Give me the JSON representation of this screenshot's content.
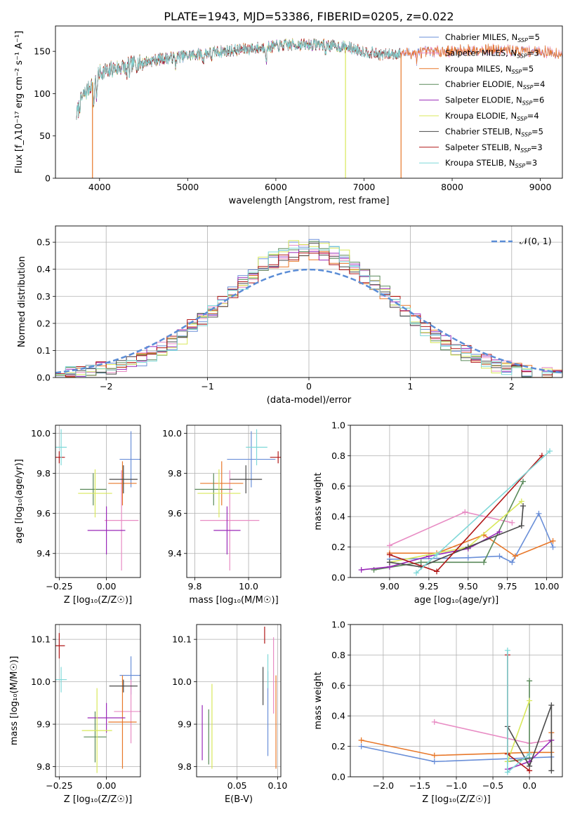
{
  "figure_title": "PLATE=1943, MJD=53386, FIBERID=0205, z=0.022",
  "colors": {
    "Chabrier MILES": "#6a8fd8",
    "Salpeter MILES": "#e88cc4",
    "Kroupa MILES": "#e8782a",
    "Chabrier ELODIE": "#5a8a5a",
    "Salpeter ELODIE": "#9a2ab8",
    "Kroupa ELODIE": "#d8e85a",
    "Chabrier STELIB": "#4a4a4a",
    "Salpeter STELIB": "#b01818",
    "Kroupa STELIB": "#7fd8d8",
    "gaussian": "#5b8dd6"
  },
  "chart_data": [
    {
      "id": "spectrum",
      "type": "line",
      "xlabel": "wavelength [Angstrom, rest frame]",
      "ylabel": "Flux [f_λ10⁻¹⁷ erg cm⁻² s⁻¹ A⁻¹]",
      "xlim": [
        3500,
        9250
      ],
      "ylim": [
        0,
        180
      ],
      "xticks": [
        4000,
        5000,
        6000,
        7000,
        8000,
        9000
      ],
      "yticks": [
        0,
        50,
        100,
        150
      ],
      "legend_loc": "upper right",
      "continuum": {
        "x": [
          3740,
          3800,
          3900,
          3950,
          4000,
          4100,
          4200,
          4300,
          4500,
          4700,
          5000,
          5300,
          5600,
          5900,
          6200,
          6500,
          6800,
          7000,
          7200,
          7500,
          7800,
          8000,
          8300,
          8600,
          9000,
          9200
        ],
        "y": [
          75,
          95,
          110,
          118,
          125,
          128,
          130,
          133,
          137,
          141,
          145,
          149,
          152,
          155,
          158,
          158,
          155,
          150,
          146,
          148,
          150,
          150,
          152,
          151,
          150,
          148
        ]
      },
      "series": [
        {
          "name": "Chabrier MILES",
          "n_ssp": "5",
          "x_range": [
            3740,
            9250
          ]
        },
        {
          "name": "Salpeter MILES",
          "n_ssp": "3",
          "x_range": [
            3740,
            9250
          ]
        },
        {
          "name": "Kroupa MILES",
          "n_ssp": "5",
          "x_range": [
            3740,
            9250
          ]
        },
        {
          "name": "Chabrier ELODIE",
          "n_ssp": "4",
          "x_range": [
            3740,
            6800
          ]
        },
        {
          "name": "Salpeter ELODIE",
          "n_ssp": "6",
          "x_range": [
            3740,
            6800
          ]
        },
        {
          "name": "Kroupa ELODIE",
          "n_ssp": "4",
          "x_range": [
            3740,
            6800
          ]
        },
        {
          "name": "Chabrier STELIB",
          "n_ssp": "5",
          "x_range": [
            3740,
            7420
          ]
        },
        {
          "name": "Salpeter STELIB",
          "n_ssp": "3",
          "x_range": [
            3740,
            7420
          ]
        },
        {
          "name": "Kroupa STELIB",
          "n_ssp": "3",
          "x_range": [
            3740,
            7420
          ]
        }
      ],
      "vertical_drops": [
        {
          "x": 3920,
          "series": "Kroupa MILES"
        },
        {
          "x": 6790,
          "series": "Kroupa ELODIE"
        },
        {
          "x": 7420,
          "series": "Kroupa MILES"
        }
      ]
    },
    {
      "id": "residuals",
      "type": "histogram",
      "xlabel": "(data-model)/error",
      "ylabel": "Normed distribution",
      "xlim": [
        -2.5,
        2.5
      ],
      "ylim": [
        0,
        0.56
      ],
      "xticks": [
        -2,
        -1,
        0,
        1,
        2
      ],
      "yticks": [
        0.0,
        0.1,
        0.2,
        0.3,
        0.4,
        0.5
      ],
      "bin_width": 0.1,
      "reference": {
        "label": "𝒩(0, 1)",
        "mean": 0,
        "sigma": 1
      },
      "legend_loc": "upper right"
    },
    {
      "id": "age_vs_Z",
      "type": "errorbar",
      "xlabel": "Z [log₁₀(Z/Z☉)]",
      "ylabel": "age  [log₁₀(age/yr)]",
      "xlim": [
        -0.27,
        0.18
      ],
      "ylim": [
        9.28,
        10.04
      ],
      "xticks": [
        -0.25,
        0.0
      ],
      "yticks": [
        9.4,
        9.6,
        9.8,
        10.0
      ],
      "points": [
        {
          "series": "Chabrier MILES",
          "x": 0.13,
          "xerr": 0.06,
          "y": 9.87,
          "yerr": 0.14
        },
        {
          "series": "Salpeter MILES",
          "x": 0.08,
          "xerr": 0.09,
          "y": 9.565,
          "yerr": 0.25
        },
        {
          "series": "Kroupa MILES",
          "x": 0.085,
          "xerr": 0.075,
          "y": 9.75,
          "yerr": 0.11
        },
        {
          "series": "Chabrier ELODIE",
          "x": -0.07,
          "xerr": 0.07,
          "y": 9.72,
          "yerr": 0.08
        },
        {
          "series": "Salpeter ELODIE",
          "x": 0.0,
          "xerr": 0.1,
          "y": 9.515,
          "yerr": 0.12
        },
        {
          "series": "Kroupa ELODIE",
          "x": -0.06,
          "xerr": 0.09,
          "y": 9.7,
          "yerr": 0.12
        },
        {
          "series": "Chabrier STELIB",
          "x": 0.09,
          "xerr": 0.075,
          "y": 9.77,
          "yerr": 0.07
        },
        {
          "series": "Salpeter STELIB",
          "x": -0.25,
          "xerr": 0.03,
          "y": 9.88,
          "yerr": 0.03
        },
        {
          "series": "Kroupa STELIB",
          "x": -0.24,
          "xerr": 0.03,
          "y": 9.93,
          "yerr": 0.09
        }
      ]
    },
    {
      "id": "age_vs_mass",
      "type": "errorbar",
      "xlabel": "mass [log₁₀(M/M☉)]",
      "ylabel": "",
      "xlim": [
        9.77,
        10.12
      ],
      "ylim": [
        9.28,
        10.04
      ],
      "xticks": [
        9.8,
        10.0
      ],
      "yticks": [
        9.4,
        9.6,
        9.8,
        10.0
      ],
      "points": [
        {
          "series": "Chabrier MILES",
          "x": 10.01,
          "xerr": 0.09,
          "y": 9.87,
          "yerr": 0.14
        },
        {
          "series": "Salpeter MILES",
          "x": 9.93,
          "xerr": 0.11,
          "y": 9.565,
          "yerr": 0.25
        },
        {
          "series": "Kroupa MILES",
          "x": 9.9,
          "xerr": 0.08,
          "y": 9.75,
          "yerr": 0.11
        },
        {
          "series": "Chabrier ELODIE",
          "x": 9.87,
          "xerr": 0.07,
          "y": 9.72,
          "yerr": 0.08
        },
        {
          "series": "Salpeter ELODIE",
          "x": 9.92,
          "xerr": 0.05,
          "y": 9.515,
          "yerr": 0.12
        },
        {
          "series": "Kroupa ELODIE",
          "x": 9.89,
          "xerr": 0.08,
          "y": 9.7,
          "yerr": 0.12
        },
        {
          "series": "Chabrier STELIB",
          "x": 9.99,
          "xerr": 0.06,
          "y": 9.77,
          "yerr": 0.07
        },
        {
          "series": "Salpeter STELIB",
          "x": 10.11,
          "xerr": 0.03,
          "y": 9.88,
          "yerr": 0.03
        },
        {
          "series": "Kroupa STELIB",
          "x": 10.03,
          "xerr": 0.04,
          "y": 9.93,
          "yerr": 0.09
        }
      ]
    },
    {
      "id": "weight_vs_age",
      "type": "line",
      "xlabel": "age  [log₁₀(age/yr)]",
      "ylabel": "mass weight",
      "xlim": [
        8.75,
        10.1
      ],
      "ylim": [
        0,
        1.0
      ],
      "xticks": [
        9.0,
        9.25,
        9.5,
        9.75,
        10.0
      ],
      "yticks": [
        0.0,
        0.2,
        0.4,
        0.6,
        0.8,
        1.0
      ],
      "grid": true,
      "series": [
        {
          "name": "Chabrier MILES",
          "points": [
            [
              9.0,
              0.12
            ],
            [
              9.5,
              0.13
            ],
            [
              9.7,
              0.14
            ],
            [
              9.78,
              0.1
            ],
            [
              9.95,
              0.42
            ],
            [
              10.04,
              0.2
            ]
          ]
        },
        {
          "name": "Salpeter MILES",
          "points": [
            [
              9.0,
              0.21
            ],
            [
              9.48,
              0.43
            ],
            [
              9.78,
              0.36
            ]
          ]
        },
        {
          "name": "Kroupa MILES",
          "points": [
            [
              9.0,
              0.16
            ],
            [
              9.3,
              0.16
            ],
            [
              9.6,
              0.28
            ],
            [
              9.8,
              0.14
            ],
            [
              10.04,
              0.24
            ]
          ]
        },
        {
          "name": "Chabrier ELODIE",
          "points": [
            [
              8.9,
              0.05
            ],
            [
              9.2,
              0.1
            ],
            [
              9.6,
              0.1
            ],
            [
              9.85,
              0.63
            ]
          ]
        },
        {
          "name": "Salpeter ELODIE",
          "points": [
            [
              8.82,
              0.05
            ],
            [
              9.0,
              0.07
            ],
            [
              9.25,
              0.14
            ],
            [
              9.5,
              0.19
            ],
            [
              9.7,
              0.3
            ]
          ]
        },
        {
          "name": "Kroupa ELODIE",
          "points": [
            [
              9.0,
              0.1
            ],
            [
              9.5,
              0.2
            ],
            [
              9.84,
              0.5
            ]
          ]
        },
        {
          "name": "Chabrier STELIB",
          "points": [
            [
              9.0,
              0.1
            ],
            [
              9.2,
              0.07
            ],
            [
              9.5,
              0.2
            ],
            [
              9.84,
              0.34
            ],
            [
              9.85,
              0.47
            ]
          ]
        },
        {
          "name": "Salpeter STELIB",
          "points": [
            [
              9.0,
              0.15
            ],
            [
              9.3,
              0.04
            ],
            [
              9.97,
              0.8
            ]
          ]
        },
        {
          "name": "Kroupa STELIB",
          "points": [
            [
              9.17,
              0.03
            ],
            [
              9.3,
              0.15
            ],
            [
              10.02,
              0.83
            ]
          ]
        }
      ]
    },
    {
      "id": "mass_vs_Z",
      "type": "errorbar",
      "xlabel": "Z [log₁₀(Z/Z☉)]",
      "ylabel": "mass [log₁₀(M/M☉)]",
      "xlim": [
        -0.27,
        0.18
      ],
      "ylim": [
        9.776,
        10.135
      ],
      "xticks": [
        -0.25,
        0.0
      ],
      "yticks": [
        9.8,
        9.9,
        10.0,
        10.1
      ],
      "points": [
        {
          "series": "Chabrier MILES",
          "x": 0.13,
          "xerr": 0.06,
          "y": 10.015,
          "yerr": 0.045
        },
        {
          "series": "Salpeter MILES",
          "x": 0.13,
          "xerr": 0.09,
          "y": 9.93,
          "yerr": 0.075
        },
        {
          "series": "Kroupa MILES",
          "x": 0.085,
          "xerr": 0.075,
          "y": 9.905,
          "yerr": 0.11
        },
        {
          "series": "Chabrier ELODIE",
          "x": -0.06,
          "xerr": 0.06,
          "y": 9.87,
          "yerr": 0.06
        },
        {
          "series": "Salpeter ELODIE",
          "x": 0.0,
          "xerr": 0.1,
          "y": 9.915,
          "yerr": 0.035
        },
        {
          "series": "Kroupa ELODIE",
          "x": -0.05,
          "xerr": 0.08,
          "y": 9.885,
          "yerr": 0.1
        },
        {
          "series": "Chabrier STELIB",
          "x": 0.09,
          "xerr": 0.075,
          "y": 9.99,
          "yerr": 0.015
        },
        {
          "series": "Salpeter STELIB",
          "x": -0.25,
          "xerr": 0.03,
          "y": 10.085,
          "yerr": 0.03
        },
        {
          "series": "Kroupa STELIB",
          "x": -0.24,
          "xerr": 0.03,
          "y": 10.005,
          "yerr": 0.03
        }
      ]
    },
    {
      "id": "mass_vs_EBV",
      "type": "errorbar",
      "xlabel": "E(B-V)",
      "ylabel": "",
      "xlim": [
        0.0,
        0.104
      ],
      "ylim": [
        9.776,
        10.135
      ],
      "xticks": [
        0.05,
        0.1
      ],
      "yticks": [
        9.8,
        9.9,
        10.0,
        10.1
      ],
      "points": [
        {
          "series": "Chabrier MILES",
          "x": 0.088,
          "xerr": 0.0,
          "y": 9.925,
          "yerr": 0.1
        },
        {
          "series": "Salpeter MILES",
          "x": 0.095,
          "xerr": 0.0,
          "y": 10.015,
          "yerr": 0.09
        },
        {
          "series": "Kroupa MILES",
          "x": 0.098,
          "xerr": 0.0,
          "y": 9.905,
          "yerr": 0.11
        },
        {
          "series": "Chabrier ELODIE",
          "x": 0.015,
          "xerr": 0.0,
          "y": 9.87,
          "yerr": 0.065
        },
        {
          "series": "Salpeter ELODIE",
          "x": 0.007,
          "xerr": 0.0,
          "y": 9.88,
          "yerr": 0.065
        },
        {
          "series": "Kroupa ELODIE",
          "x": 0.019,
          "xerr": 0.0,
          "y": 9.895,
          "yerr": 0.1
        },
        {
          "series": "Chabrier STELIB",
          "x": 0.082,
          "xerr": 0.0,
          "y": 9.99,
          "yerr": 0.045
        },
        {
          "series": "Salpeter STELIB",
          "x": 0.084,
          "xerr": 0.0,
          "y": 10.11,
          "yerr": 0.02
        },
        {
          "series": "Kroupa STELIB",
          "x": 0.088,
          "xerr": 0.0,
          "y": 10.025,
          "yerr": 0.04
        }
      ]
    },
    {
      "id": "weight_vs_Z",
      "type": "line",
      "xlabel": "Z [log₁₀(Z/Z☉)]",
      "ylabel": "mass weight",
      "xlim": [
        -2.45,
        0.45
      ],
      "ylim": [
        0,
        1.0
      ],
      "xticks": [
        -2.0,
        -1.5,
        -1.0,
        -0.5,
        0.0
      ],
      "yticks": [
        0.0,
        0.2,
        0.4,
        0.6,
        0.8,
        1.0
      ],
      "grid": true,
      "series": [
        {
          "name": "Chabrier MILES",
          "points": [
            [
              -2.3,
              0.2
            ],
            [
              -1.3,
              0.1
            ],
            [
              0.3,
              0.13
            ]
          ]
        },
        {
          "name": "Salpeter MILES",
          "points": [
            [
              -1.3,
              0.36
            ],
            [
              0.0,
              0.22
            ],
            [
              0.3,
              0.24
            ]
          ]
        },
        {
          "name": "Kroupa MILES",
          "points": [
            [
              -2.3,
              0.24
            ],
            [
              -1.3,
              0.14
            ],
            [
              0.0,
              0.16
            ],
            [
              0.3,
              0.16
            ],
            [
              0.3,
              0.29
            ]
          ]
        },
        {
          "name": "Chabrier ELODIE",
          "points": [
            [
              -0.3,
              0.1
            ],
            [
              0.0,
              0.12
            ],
            [
              0.0,
              0.63
            ]
          ]
        },
        {
          "name": "Salpeter ELODIE",
          "points": [
            [
              -0.3,
              0.05
            ],
            [
              0.0,
              0.1
            ],
            [
              0.3,
              0.24
            ]
          ]
        },
        {
          "name": "Kroupa ELODIE",
          "points": [
            [
              -0.3,
              0.1
            ],
            [
              0.0,
              0.5
            ]
          ]
        },
        {
          "name": "Chabrier STELIB",
          "points": [
            [
              -0.3,
              0.33
            ],
            [
              0.0,
              0.07
            ],
            [
              0.3,
              0.47
            ],
            [
              0.3,
              0.04
            ]
          ]
        },
        {
          "name": "Salpeter STELIB",
          "points": [
            [
              -0.3,
              0.8
            ],
            [
              -0.3,
              0.15
            ],
            [
              0.0,
              0.04
            ]
          ]
        },
        {
          "name": "Kroupa STELIB",
          "points": [
            [
              -0.3,
              0.83
            ],
            [
              -0.3,
              0.03
            ],
            [
              0.0,
              0.15
            ]
          ]
        }
      ]
    }
  ]
}
